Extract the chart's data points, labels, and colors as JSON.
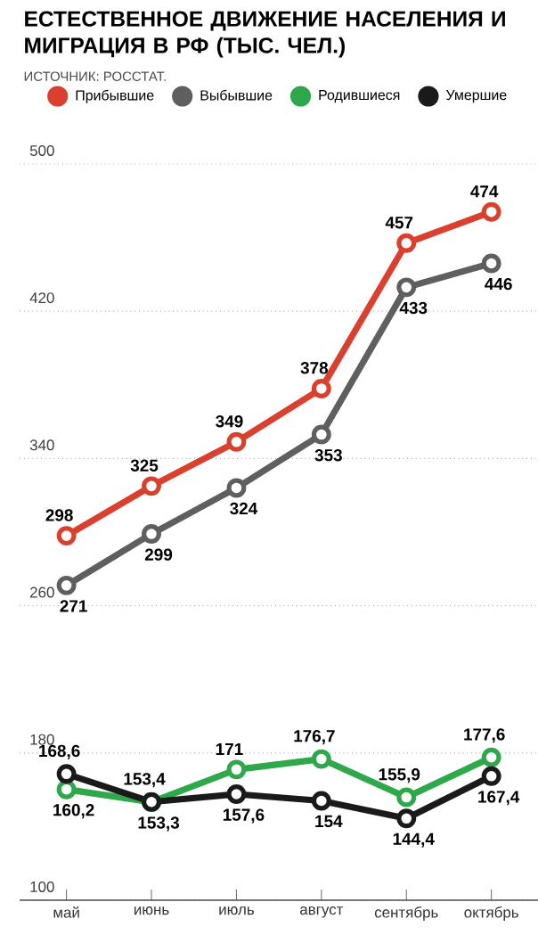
{
  "chart_data": {
    "type": "line",
    "title": "ЕСТЕСТВЕННОЕ ДВИЖЕНИЕ НАСЕЛЕНИЯ И МИГРАЦИЯ В РФ (ТЫС. ЧЕЛ.)",
    "annotations": [
      "ИСТОЧНИК: РОССТАТ."
    ],
    "categories": [
      "май",
      "июнь",
      "июль",
      "август",
      "сентябрь",
      "октябрь"
    ],
    "series": [
      {
        "name": "Прибывшие",
        "color": "#d9412e",
        "values": [
          298,
          325,
          349,
          378,
          457,
          474
        ],
        "value_labels": [
          "298",
          "325",
          "349",
          "378",
          "457",
          "474"
        ]
      },
      {
        "name": "Выбывшие",
        "color": "#5f5f5f",
        "values": [
          271,
          299,
          324,
          353,
          433,
          446
        ],
        "value_labels": [
          "271",
          "299",
          "324",
          "353",
          "433",
          "446"
        ]
      },
      {
        "name": "Родившиеся",
        "color": "#2ea84a",
        "values": [
          160.2,
          153.3,
          171,
          176.7,
          155.9,
          177.6
        ],
        "value_labels": [
          "160,2",
          "153,3",
          "171",
          "176,7",
          "155,9",
          "177,6"
        ]
      },
      {
        "name": "Умершие",
        "color": "#1a1a1a",
        "values": [
          168.6,
          153.4,
          157.6,
          154,
          144.4,
          167.4
        ],
        "value_labels": [
          "168,6",
          "153,4",
          "157,6",
          "154",
          "144,4",
          "167,4"
        ]
      }
    ],
    "ylim": [
      100,
      500
    ],
    "yticks": [
      100,
      180,
      260,
      340,
      420,
      500
    ],
    "grid": "y",
    "legend": "top",
    "marker": "circle",
    "line_style": "solid"
  }
}
